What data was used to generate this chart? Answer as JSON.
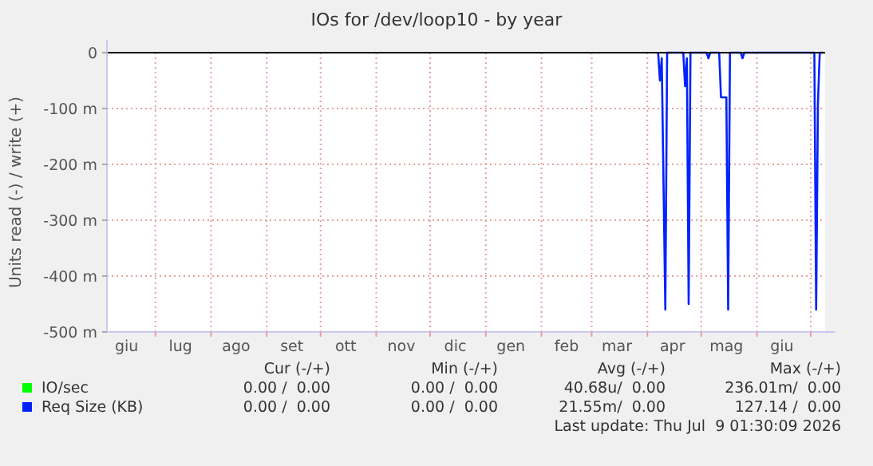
{
  "chart_data": {
    "type": "line",
    "title": "IOs for /dev/loop10 - by year",
    "ylabel": "Units read (-) / write (+)",
    "x": [
      "2026-04-07",
      "2026-04-08",
      "2026-04-09",
      "2026-04-11",
      "2026-04-12",
      "2026-04-21",
      "2026-04-22",
      "2026-04-23",
      "2026-04-24",
      "2026-04-25",
      "2026-05-04",
      "2026-05-05",
      "2026-05-06",
      "2026-05-11",
      "2026-05-12",
      "2026-05-15",
      "2026-05-16",
      "2026-05-17",
      "2026-05-23",
      "2026-05-24",
      "2026-05-25",
      "2026-07-03",
      "2026-07-04",
      "2026-07-05",
      "2026-07-06",
      "2026-07-08"
    ],
    "series": [
      {
        "name": "IO/sec",
        "color": "#00ff00",
        "values": [
          null,
          null,
          null,
          null,
          null,
          null,
          null,
          null,
          null,
          null,
          null,
          null,
          null,
          null,
          null,
          null,
          null,
          null,
          null,
          null,
          null,
          null,
          null,
          null,
          null,
          null
        ]
      },
      {
        "name": "Req Size (KB)",
        "color": "#0022ff",
        "values": [
          0,
          -50,
          -10,
          -460,
          0,
          0,
          -60,
          -10,
          -450,
          0,
          0,
          -10,
          0,
          0,
          -80,
          -80,
          -460,
          0,
          0,
          -10,
          0,
          0,
          -460,
          -90,
          0,
          0
        ]
      }
    ],
    "xlim": [
      "2025-06-04",
      "2026-07-09"
    ],
    "xticks": [
      {
        "value": "2025-06-15",
        "label": "giu"
      },
      {
        "value": "2025-07-01",
        "label": null
      },
      {
        "value": "2025-07-15",
        "label": "lug"
      },
      {
        "value": "2025-08-01",
        "label": null
      },
      {
        "value": "2025-08-15",
        "label": "ago"
      },
      {
        "value": "2025-09-01",
        "label": null
      },
      {
        "value": "2025-09-15",
        "label": "set"
      },
      {
        "value": "2025-10-01",
        "label": null
      },
      {
        "value": "2025-10-15",
        "label": "ott"
      },
      {
        "value": "2025-11-01",
        "label": null
      },
      {
        "value": "2025-11-15",
        "label": "nov"
      },
      {
        "value": "2025-12-01",
        "label": null
      },
      {
        "value": "2025-12-15",
        "label": "dic"
      },
      {
        "value": "2026-01-01",
        "label": null
      },
      {
        "value": "2026-01-15",
        "label": "gen"
      },
      {
        "value": "2026-02-01",
        "label": null
      },
      {
        "value": "2026-02-15",
        "label": "feb"
      },
      {
        "value": "2026-03-01",
        "label": null
      },
      {
        "value": "2026-03-15",
        "label": "mar"
      },
      {
        "value": "2026-04-01",
        "label": null
      },
      {
        "value": "2026-04-15",
        "label": "apr"
      },
      {
        "value": "2026-05-01",
        "label": null
      },
      {
        "value": "2026-05-15",
        "label": "mag"
      },
      {
        "value": "2026-06-01",
        "label": null
      },
      {
        "value": "2026-06-15",
        "label": "giu"
      },
      {
        "value": "2026-07-01",
        "label": null
      }
    ],
    "ylim": [
      -500,
      0
    ],
    "yticks": [
      {
        "value": 0,
        "label": "0"
      },
      {
        "value": -100,
        "label": "-100 m"
      },
      {
        "value": -200,
        "label": "-200 m"
      },
      {
        "value": -300,
        "label": "-300 m"
      },
      {
        "value": -400,
        "label": "-400 m"
      },
      {
        "value": -500,
        "label": "-500 m"
      }
    ],
    "grid": true,
    "legend": "bottom",
    "annotations": [
      "Cur (-/+)",
      "Min (-/+)",
      "Avg (-/+)",
      "Max (-/+)",
      "0.00 /  0.00",
      "0.00 /  0.00",
      "40.68u/  0.00",
      "236.01m/  0.00",
      "0.00 /  0.00",
      "0.00 /  0.00",
      "21.55m/  0.00",
      "127.14 /  0.00",
      "Last update: Thu Jul  9 01:30:09 2026"
    ]
  }
}
